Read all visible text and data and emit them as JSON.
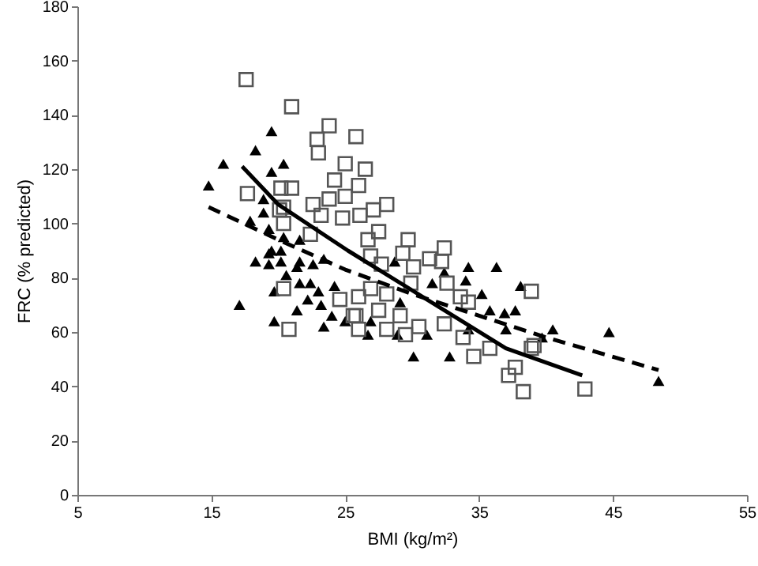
{
  "chart_data": {
    "type": "scatter",
    "xlabel": "BMI (kg/m²)",
    "ylabel": "FRC (% predicted)",
    "xlim": [
      5,
      55
    ],
    "xticks": [
      5,
      15,
      25,
      35,
      45,
      55
    ],
    "ylim": [
      0,
      180
    ],
    "yticks": [
      0,
      20,
      40,
      60,
      80,
      100,
      120,
      140,
      160,
      180
    ],
    "series": [
      {
        "marker": "triangle",
        "color": "#000000",
        "x": [
          19.5,
          18.3,
          15.9,
          20.4,
          14.8,
          19.5,
          18.9,
          18.9,
          17.9,
          19.3,
          20.4,
          21.6,
          19.5,
          18.3,
          19.3,
          19.3,
          20.2,
          20.2,
          21.6,
          20.6,
          21.4,
          22.6,
          23.4,
          19.7,
          21.6,
          22.4,
          23.0,
          24.2,
          17.1,
          22.2,
          23.2,
          21.4,
          24.0,
          25.0,
          19.7,
          23.4,
          34.2,
          36.3,
          34.0,
          32.4,
          28.7,
          31.5,
          35.2,
          38.1,
          35.8,
          36.9,
          37.7,
          26.9,
          29.1,
          31.1,
          37.0,
          40.5,
          39.7,
          34.2,
          28.9,
          26.7,
          44.7,
          48.4,
          30.1,
          32.8
        ],
        "values": [
          134,
          127,
          122,
          122,
          114,
          119,
          109,
          104,
          101,
          98,
          95,
          94,
          90,
          86,
          89,
          85,
          90,
          86,
          86,
          81,
          84,
          85,
          87,
          75,
          78,
          78,
          75,
          77,
          70,
          72,
          70,
          68,
          66,
          64,
          64,
          62,
          84,
          84,
          79,
          82,
          86,
          78,
          74,
          77,
          68,
          67,
          68,
          64,
          71,
          59,
          61,
          61,
          58,
          61,
          59,
          59,
          60,
          42,
          51,
          51
        ]
      },
      {
        "marker": "square",
        "color": "#555555",
        "x": [
          17.6,
          21.0,
          23.8,
          22.9,
          25.8,
          23.0,
          25.0,
          24.2,
          26.0,
          20.2,
          21.0,
          17.7,
          22.6,
          23.8,
          25.0,
          20.4,
          23.2,
          24.8,
          22.4,
          20.4,
          20.1,
          20.4,
          24.6,
          20.8,
          25.8,
          26.5,
          28.1,
          27.1,
          26.1,
          27.5,
          26.7,
          29.7,
          32.4,
          29.3,
          30.1,
          32.2,
          31.3,
          27.7,
          26.9,
          32.6,
          29.9,
          28.1,
          26.9,
          26.0,
          38.9,
          33.6,
          34.2,
          25.6,
          27.5,
          29.1,
          32.4,
          30.5,
          29.5,
          28.1,
          26.0,
          33.8,
          39.1,
          38.9,
          38.3,
          42.9,
          37.2,
          37.7,
          34.6,
          35.8
        ],
        "values": [
          153,
          143,
          136,
          131,
          132,
          126,
          122,
          116,
          114,
          113,
          113,
          111,
          107,
          109,
          110,
          106,
          103,
          102,
          96,
          100,
          105,
          76,
          72,
          61,
          66,
          120,
          107,
          105,
          103,
          97,
          94,
          94,
          91,
          89,
          84,
          86,
          87,
          85,
          88,
          78,
          78,
          74,
          76,
          73,
          75,
          73,
          71,
          66,
          68,
          66,
          63,
          62,
          59,
          61,
          61,
          58,
          55,
          54,
          38,
          39,
          44,
          47,
          51,
          54
        ]
      },
      {
        "type": "line",
        "line_style": "solid",
        "color": "#000000",
        "x": [
          17.3,
          20,
          25.2,
          31.1,
          37,
          42.7
        ],
        "values": [
          121,
          107,
          90,
          72,
          54,
          44
        ]
      },
      {
        "type": "line",
        "line_style": "dashed",
        "color": "#000000",
        "x": [
          14.8,
          20,
          25,
          30,
          35,
          40,
          48.4
        ],
        "values": [
          106,
          94,
          83,
          74,
          66,
          58,
          46
        ]
      }
    ]
  }
}
